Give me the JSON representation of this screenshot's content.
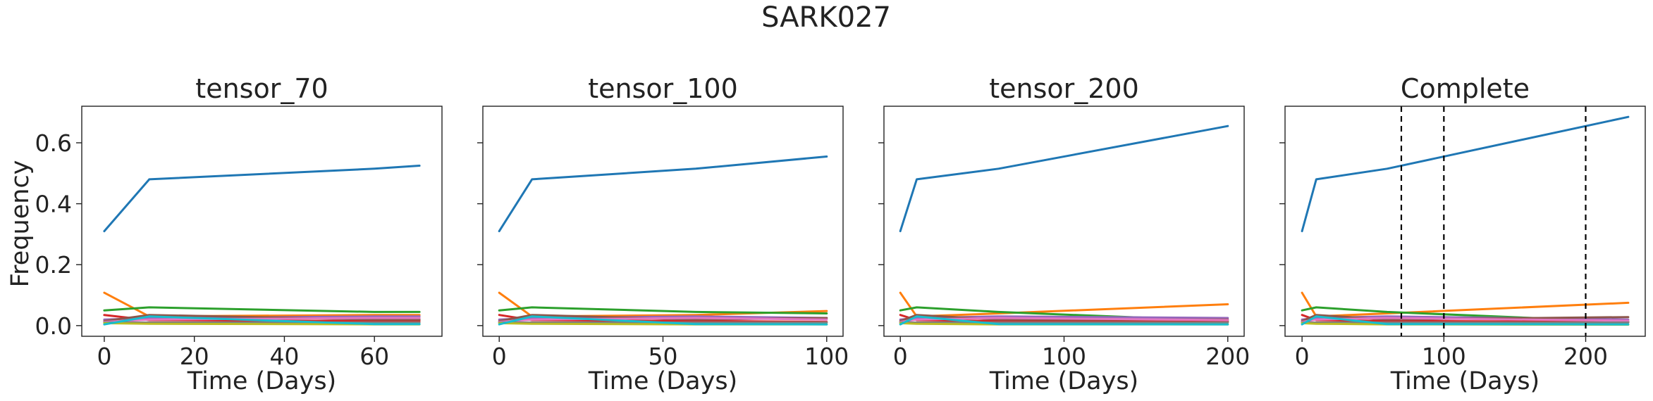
{
  "suptitle": "SARK027",
  "ylabel": "Frequency",
  "chart_data": [
    {
      "type": "line",
      "title": "tensor_70",
      "xlabel": "Time (Days)",
      "xlim": [
        -5,
        75
      ],
      "ylim": [
        -0.035,
        0.72
      ],
      "xticks": [
        0,
        20,
        40,
        60
      ],
      "yticks": [
        0.0,
        0.2,
        0.4,
        0.6
      ],
      "vlines": [],
      "series": [
        {
          "color": "#1f77b4",
          "x": [
            0,
            10,
            60,
            70
          ],
          "y": [
            0.31,
            0.48,
            0.515,
            0.525
          ]
        },
        {
          "color": "#ff7f0e",
          "x": [
            0,
            10,
            60,
            70
          ],
          "y": [
            0.108,
            0.03,
            0.035,
            0.035
          ]
        },
        {
          "color": "#2ca02c",
          "x": [
            0,
            10,
            60,
            70
          ],
          "y": [
            0.05,
            0.06,
            0.045,
            0.045
          ]
        },
        {
          "color": "#d62728",
          "x": [
            0,
            10,
            60,
            70
          ],
          "y": [
            0.035,
            0.018,
            0.015,
            0.015
          ]
        },
        {
          "color": "#9467bd",
          "x": [
            0,
            10,
            60,
            70
          ],
          "y": [
            0.02,
            0.025,
            0.03,
            0.03
          ]
        },
        {
          "color": "#8c564b",
          "x": [
            0,
            10,
            60,
            70
          ],
          "y": [
            0.015,
            0.035,
            0.02,
            0.02
          ]
        },
        {
          "color": "#e377c2",
          "x": [
            0,
            10,
            60,
            70
          ],
          "y": [
            0.012,
            0.02,
            0.025,
            0.025
          ]
        },
        {
          "color": "#7f7f7f",
          "x": [
            0,
            10,
            60,
            70
          ],
          "y": [
            0.01,
            0.01,
            0.01,
            0.01
          ]
        },
        {
          "color": "#bcbd22",
          "x": [
            0,
            10,
            60,
            70
          ],
          "y": [
            0.008,
            0.006,
            0.004,
            0.004
          ]
        },
        {
          "color": "#17becf",
          "x": [
            0,
            10,
            60,
            70
          ],
          "y": [
            0.004,
            0.03,
            0.005,
            0.005
          ]
        }
      ]
    },
    {
      "type": "line",
      "title": "tensor_100",
      "xlabel": "Time (Days)",
      "xlim": [
        -5,
        105
      ],
      "ylim": [
        -0.035,
        0.72
      ],
      "xticks": [
        0,
        50,
        100
      ],
      "yticks": [
        0.0,
        0.2,
        0.4,
        0.6
      ],
      "vlines": [],
      "series": [
        {
          "color": "#1f77b4",
          "x": [
            0,
            10,
            60,
            100
          ],
          "y": [
            0.31,
            0.48,
            0.515,
            0.555
          ]
        },
        {
          "color": "#ff7f0e",
          "x": [
            0,
            10,
            60,
            100
          ],
          "y": [
            0.108,
            0.03,
            0.035,
            0.048
          ]
        },
        {
          "color": "#2ca02c",
          "x": [
            0,
            10,
            60,
            100
          ],
          "y": [
            0.05,
            0.06,
            0.045,
            0.04
          ]
        },
        {
          "color": "#d62728",
          "x": [
            0,
            10,
            60,
            100
          ],
          "y": [
            0.035,
            0.018,
            0.015,
            0.012
          ]
        },
        {
          "color": "#9467bd",
          "x": [
            0,
            10,
            60,
            100
          ],
          "y": [
            0.02,
            0.025,
            0.03,
            0.025
          ]
        },
        {
          "color": "#8c564b",
          "x": [
            0,
            10,
            60,
            100
          ],
          "y": [
            0.015,
            0.035,
            0.02,
            0.025
          ]
        },
        {
          "color": "#e377c2",
          "x": [
            0,
            10,
            60,
            100
          ],
          "y": [
            0.012,
            0.02,
            0.025,
            0.02
          ]
        },
        {
          "color": "#7f7f7f",
          "x": [
            0,
            10,
            60,
            100
          ],
          "y": [
            0.01,
            0.01,
            0.01,
            0.01
          ]
        },
        {
          "color": "#bcbd22",
          "x": [
            0,
            10,
            60,
            100
          ],
          "y": [
            0.008,
            0.006,
            0.004,
            0.004
          ]
        },
        {
          "color": "#17becf",
          "x": [
            0,
            10,
            60,
            100
          ],
          "y": [
            0.004,
            0.03,
            0.005,
            0.004
          ]
        }
      ]
    },
    {
      "type": "line",
      "title": "tensor_200",
      "xlabel": "Time (Days)",
      "xlim": [
        -10,
        210
      ],
      "ylim": [
        -0.035,
        0.72
      ],
      "xticks": [
        0,
        100,
        200
      ],
      "yticks": [
        0.0,
        0.2,
        0.4,
        0.6
      ],
      "vlines": [],
      "series": [
        {
          "color": "#1f77b4",
          "x": [
            0,
            10,
            60,
            200
          ],
          "y": [
            0.31,
            0.48,
            0.515,
            0.655
          ]
        },
        {
          "color": "#ff7f0e",
          "x": [
            0,
            10,
            60,
            200
          ],
          "y": [
            0.108,
            0.03,
            0.04,
            0.07
          ]
        },
        {
          "color": "#2ca02c",
          "x": [
            0,
            10,
            60,
            200
          ],
          "y": [
            0.05,
            0.06,
            0.045,
            0.015
          ]
        },
        {
          "color": "#d62728",
          "x": [
            0,
            10,
            60,
            200
          ],
          "y": [
            0.035,
            0.018,
            0.015,
            0.012
          ]
        },
        {
          "color": "#9467bd",
          "x": [
            0,
            10,
            60,
            200
          ],
          "y": [
            0.02,
            0.025,
            0.03,
            0.025
          ]
        },
        {
          "color": "#8c564b",
          "x": [
            0,
            10,
            60,
            200
          ],
          "y": [
            0.015,
            0.035,
            0.02,
            0.02
          ]
        },
        {
          "color": "#e377c2",
          "x": [
            0,
            10,
            60,
            200
          ],
          "y": [
            0.012,
            0.02,
            0.025,
            0.018
          ]
        },
        {
          "color": "#7f7f7f",
          "x": [
            0,
            10,
            60,
            200
          ],
          "y": [
            0.01,
            0.01,
            0.01,
            0.01
          ]
        },
        {
          "color": "#bcbd22",
          "x": [
            0,
            10,
            60,
            200
          ],
          "y": [
            0.008,
            0.006,
            0.004,
            0.004
          ]
        },
        {
          "color": "#17becf",
          "x": [
            0,
            10,
            60,
            200
          ],
          "y": [
            0.004,
            0.03,
            0.005,
            0.004
          ]
        }
      ]
    },
    {
      "type": "line",
      "title": "Complete",
      "xlabel": "Time (Days)",
      "xlim": [
        -12,
        242
      ],
      "ylim": [
        -0.035,
        0.72
      ],
      "xticks": [
        0,
        100,
        200
      ],
      "yticks": [
        0.0,
        0.2,
        0.4,
        0.6
      ],
      "vlines": [
        70,
        100,
        200
      ],
      "series": [
        {
          "color": "#1f77b4",
          "x": [
            0,
            10,
            60,
            230
          ],
          "y": [
            0.31,
            0.48,
            0.515,
            0.685
          ]
        },
        {
          "color": "#ff7f0e",
          "x": [
            0,
            10,
            60,
            230
          ],
          "y": [
            0.108,
            0.03,
            0.04,
            0.075
          ]
        },
        {
          "color": "#2ca02c",
          "x": [
            0,
            10,
            60,
            230
          ],
          "y": [
            0.05,
            0.06,
            0.045,
            0.012
          ]
        },
        {
          "color": "#d62728",
          "x": [
            0,
            10,
            60,
            230
          ],
          "y": [
            0.035,
            0.018,
            0.015,
            0.012
          ]
        },
        {
          "color": "#9467bd",
          "x": [
            0,
            10,
            60,
            230
          ],
          "y": [
            0.02,
            0.025,
            0.03,
            0.02
          ]
        },
        {
          "color": "#8c564b",
          "x": [
            0,
            10,
            60,
            230
          ],
          "y": [
            0.015,
            0.035,
            0.02,
            0.028
          ]
        },
        {
          "color": "#e377c2",
          "x": [
            0,
            10,
            60,
            230
          ],
          "y": [
            0.012,
            0.02,
            0.025,
            0.016
          ]
        },
        {
          "color": "#7f7f7f",
          "x": [
            0,
            10,
            60,
            230
          ],
          "y": [
            0.01,
            0.01,
            0.01,
            0.01
          ]
        },
        {
          "color": "#bcbd22",
          "x": [
            0,
            10,
            60,
            230
          ],
          "y": [
            0.008,
            0.006,
            0.004,
            0.003
          ]
        },
        {
          "color": "#17becf",
          "x": [
            0,
            10,
            60,
            230
          ],
          "y": [
            0.004,
            0.03,
            0.005,
            0.004
          ]
        }
      ]
    }
  ]
}
